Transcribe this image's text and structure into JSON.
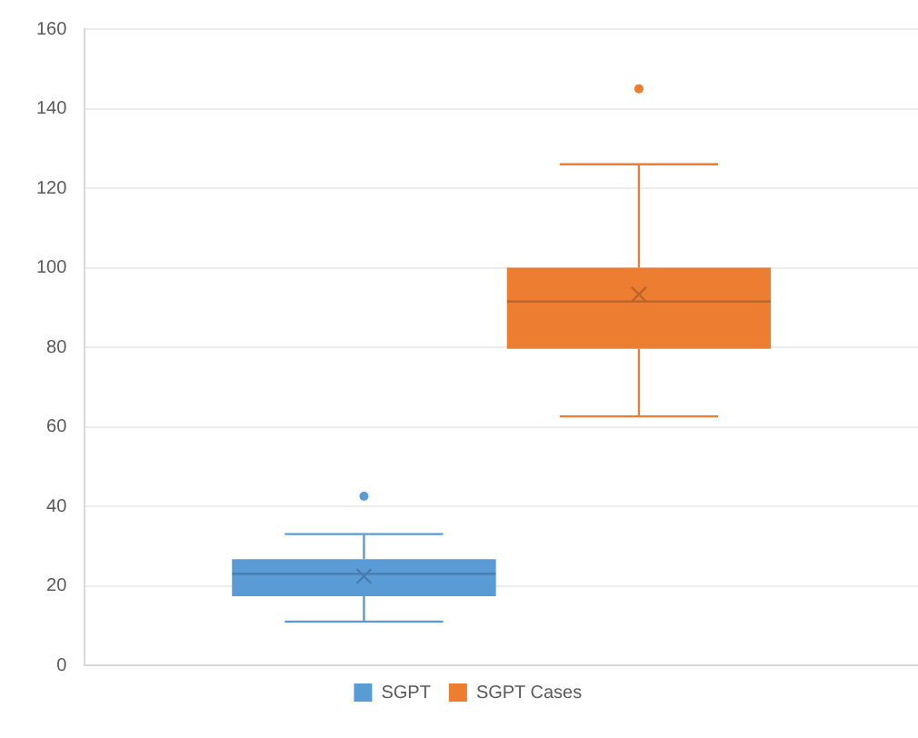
{
  "chart_data": {
    "type": "box",
    "categories": [
      null
    ],
    "series": [
      {
        "name": "SGPT",
        "color": "#5b9bd5",
        "boxes": [
          {
            "low": 11,
            "q1": 17.4,
            "median": 23,
            "q3": 26.7,
            "high": 33,
            "mean": 22.4,
            "outliers": [
              42.5
            ]
          }
        ]
      },
      {
        "name": "SGPT Cases",
        "color": "#ed7d31",
        "boxes": [
          {
            "low": 62.6,
            "q1": 79.6,
            "median": 91.5,
            "q3": 100,
            "high": 126,
            "mean": 93.3,
            "outliers": [
              145
            ]
          }
        ]
      }
    ],
    "ylim": [
      0,
      160
    ],
    "yticks": [
      0,
      20,
      40,
      60,
      80,
      100,
      120,
      140,
      160
    ],
    "grid": "y",
    "legend": "bottom",
    "tick_labels": "y"
  }
}
